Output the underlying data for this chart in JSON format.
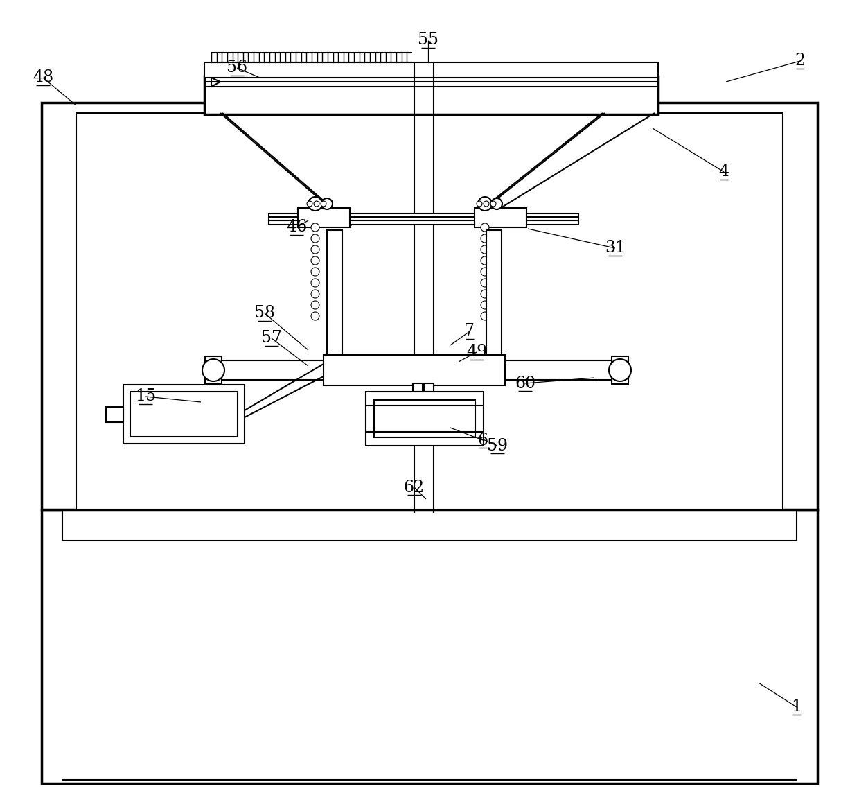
{
  "bg_color": "#ffffff",
  "line_color": "#000000",
  "lw": 1.5,
  "tlw": 2.5,
  "fig_width": 12.4,
  "fig_height": 11.44,
  "label_data": [
    [
      "1",
      1150,
      1020
    ],
    [
      "2",
      1155,
      88
    ],
    [
      "4",
      1045,
      248
    ],
    [
      "6",
      697,
      635
    ],
    [
      "7",
      678,
      478
    ],
    [
      "15",
      210,
      572
    ],
    [
      "31",
      888,
      358
    ],
    [
      "46",
      428,
      328
    ],
    [
      "48",
      62,
      112
    ],
    [
      "49",
      688,
      508
    ],
    [
      "55",
      618,
      58
    ],
    [
      "56",
      342,
      98
    ],
    [
      "57",
      392,
      488
    ],
    [
      "58",
      382,
      452
    ],
    [
      "59",
      718,
      643
    ],
    [
      "60",
      758,
      553
    ],
    [
      "62",
      598,
      703
    ]
  ]
}
